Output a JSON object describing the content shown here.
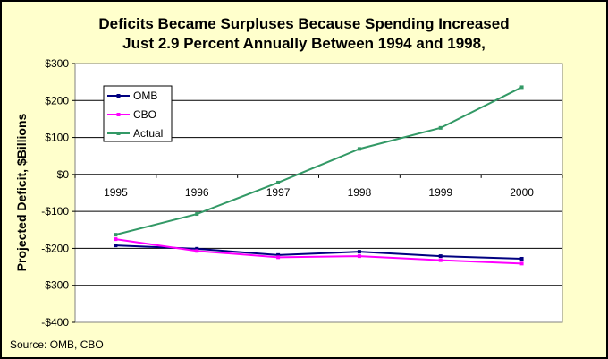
{
  "chart_data": {
    "type": "line",
    "title": [
      "Deficits Became Surpluses Because Spending Increased",
      "Just 2.9 Percent Annually Between 1994 and 1998,"
    ],
    "xlabel": "",
    "ylabel": "Projected Deficit, $Billions",
    "categories": [
      "1995",
      "1996",
      "1997",
      "1998",
      "1999",
      "2000"
    ],
    "ylim": [
      -400,
      300
    ],
    "yticks": [
      300,
      200,
      100,
      0,
      -100,
      -200,
      -300,
      -400
    ],
    "ytick_labels": [
      "$300",
      "$200",
      "$100",
      "$0",
      "-$100",
      "-$200",
      "-$300",
      "-$400"
    ],
    "grid": true,
    "legend_position": "top-left",
    "series": [
      {
        "name": "OMB",
        "color": "#000080",
        "values": [
          -192,
          -201,
          -218,
          -209,
          -221,
          -228
        ]
      },
      {
        "name": "CBO",
        "color": "#ff00ff",
        "values": [
          -175,
          -207,
          -224,
          -221,
          -232,
          -241
        ]
      },
      {
        "name": "Actual",
        "color": "#339966",
        "values": [
          -163,
          -107,
          -22,
          69,
          126,
          236
        ]
      }
    ],
    "source": "Source: OMB, CBO"
  }
}
